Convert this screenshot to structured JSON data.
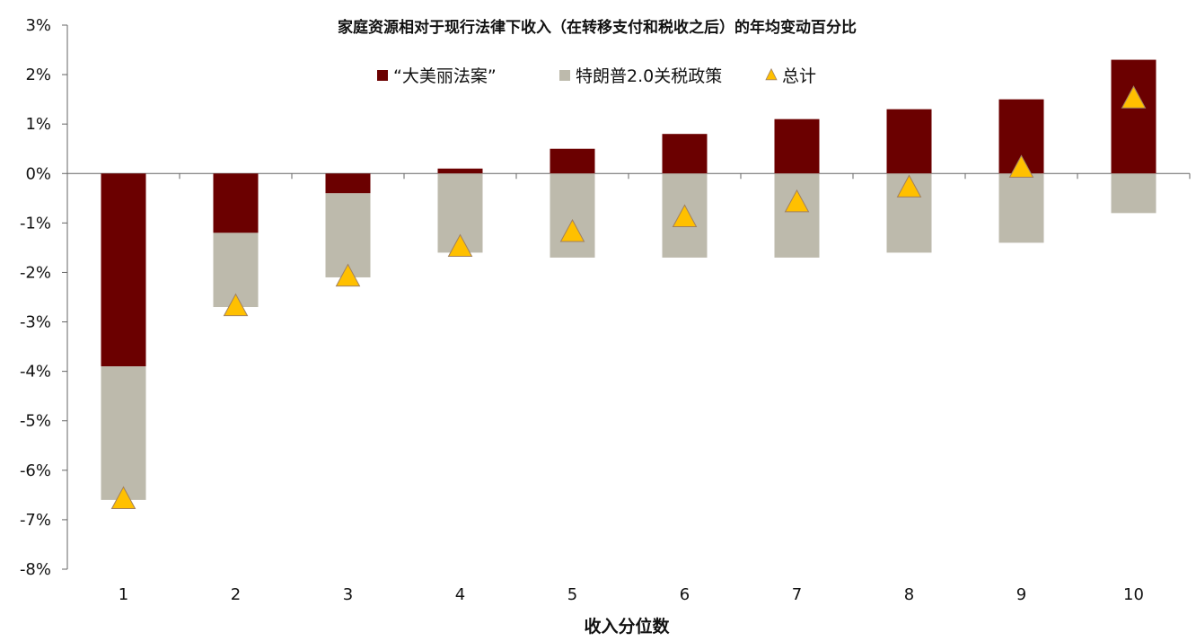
{
  "chart_data": {
    "type": "bar",
    "title": "家庭资源相对于现行法律下收入（在转移支付和税收之后）的年均变动百分比",
    "xlabel": "收入分位数",
    "ylabel": "",
    "categories": [
      "1",
      "2",
      "3",
      "4",
      "5",
      "6",
      "7",
      "8",
      "9",
      "10"
    ],
    "ylim": [
      -8,
      3
    ],
    "yticks": [
      "3%",
      "2%",
      "1%",
      "0%",
      "-1%",
      "-2%",
      "-3%",
      "-4%",
      "-5%",
      "-6%",
      "-7%",
      "-8%"
    ],
    "series": [
      {
        "name": "“大美丽法案”",
        "type": "bar",
        "color": "#6B0000",
        "values": [
          -3.9,
          -1.2,
          -0.4,
          0.1,
          0.5,
          0.8,
          1.1,
          1.3,
          1.5,
          2.3
        ]
      },
      {
        "name": "特朗普2.0关税政策",
        "type": "bar",
        "color": "#BDBAAC",
        "values": [
          -2.7,
          -1.5,
          -1.7,
          -1.6,
          -1.7,
          -1.7,
          -1.7,
          -1.6,
          -1.4,
          -0.8
        ]
      },
      {
        "name": "总计",
        "type": "scatter",
        "marker": "triangle",
        "color": "#FFC000",
        "values": [
          -6.6,
          -2.7,
          -2.1,
          -1.5,
          -1.2,
          -0.9,
          -0.6,
          -0.3,
          0.1,
          1.5
        ]
      }
    ],
    "stacked": true,
    "legend_position": "top-center",
    "grid": false
  }
}
